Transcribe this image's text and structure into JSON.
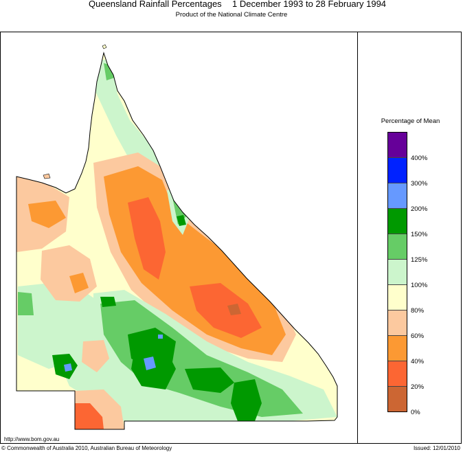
{
  "header": {
    "title_left": "Queensland Rainfall Percentages",
    "title_right": "1 December 1993 to 28 February 1994",
    "subtitle": "Product of the National Climate Centre"
  },
  "legend": {
    "title": "Percentage of Mean",
    "classes": [
      {
        "color": "#660099"
      },
      {
        "color": "#0022ff"
      },
      {
        "color": "#6699ff"
      },
      {
        "color": "#009900"
      },
      {
        "color": "#66cc66"
      },
      {
        "color": "#ccf5cc"
      },
      {
        "color": "#ffffcc"
      },
      {
        "color": "#fcc99f"
      },
      {
        "color": "#fc9933"
      },
      {
        "color": "#fc6633"
      },
      {
        "color": "#cc6633"
      }
    ],
    "labels": [
      "400%",
      "300%",
      "200%",
      "150%",
      "125%",
      "100%",
      "80%",
      "60%",
      "40%",
      "20%",
      "0%"
    ]
  },
  "footer": {
    "url": "http://www.bom.gov.au",
    "copyright": "© Commonwealth of Australia 2010, Australian Bureau of Meteorology",
    "issued": "Issued: 12/01/2010"
  }
}
